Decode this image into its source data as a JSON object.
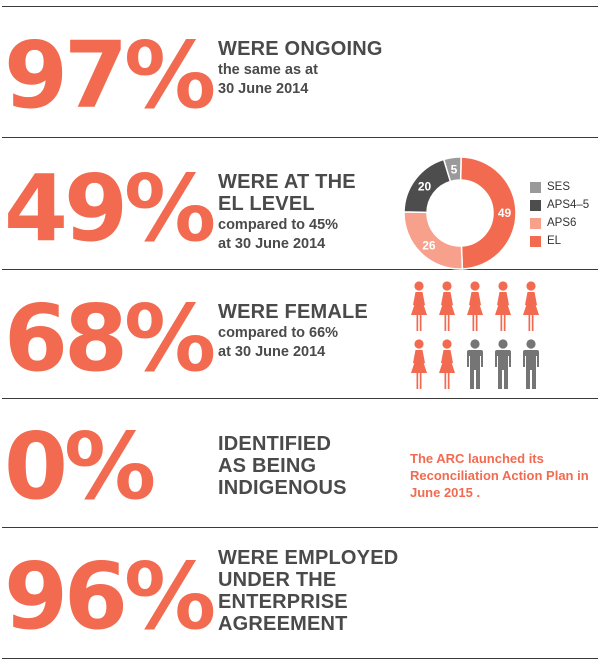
{
  "rows": [
    {
      "big": "97%",
      "headline": [
        "WERE ONGOING"
      ],
      "sub": [
        "the same as at",
        "30 June 2014"
      ]
    },
    {
      "big": "49%",
      "headline": [
        "WERE AT THE",
        "EL LEVEL"
      ],
      "sub": [
        "compared to 45%",
        "at 30 June 2014"
      ]
    },
    {
      "big": "68%",
      "headline": [
        "WERE FEMALE"
      ],
      "sub": [
        "compared to 66%",
        "at 30 June 2014"
      ]
    },
    {
      "big": "0%",
      "headline": [
        "IDENTIFIED",
        "AS BEING",
        "INDIGENOUS"
      ],
      "sub": []
    },
    {
      "big": "96%",
      "headline": [
        "WERE EMPLOYED",
        "UNDER THE",
        "ENTERPRISE",
        "AGREEMENT"
      ],
      "sub": []
    }
  ],
  "note": [
    "The ARC launched its",
    "Reconciliation Action Plan in",
    "June 2015 ."
  ],
  "chart_data": {
    "type": "pie",
    "donut": true,
    "slices": [
      {
        "label": "SES",
        "value": 5,
        "color": "#9a9a9a"
      },
      {
        "label": "APS4–5",
        "value": 20,
        "color": "#4d4d4d"
      },
      {
        "label": "APS6",
        "value": 26,
        "color": "#f7a08c"
      },
      {
        "label": "EL",
        "value": 49,
        "color": "#f26a4f"
      }
    ],
    "legend_position": "right"
  },
  "people": {
    "female_count": 7,
    "total": 10,
    "female_color": "#f26a4f",
    "male_color": "#757575"
  }
}
